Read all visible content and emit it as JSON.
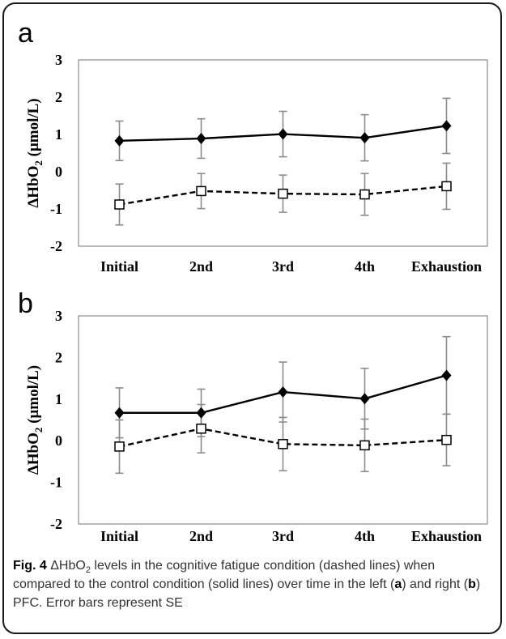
{
  "figure": {
    "caption": {
      "fig_label": "Fig. 4",
      "part1": " ΔHbO",
      "sub": "2",
      "part2": " levels in the cognitive fatigue condition (dashed lines) when compared to the control condition (solid lines) over time in the left (",
      "a": "a",
      "part3": ") and right (",
      "b": "b",
      "part4": ") PFC. Error bars represent SE"
    }
  },
  "chart_data": [
    {
      "panel": "a",
      "type": "line",
      "categories": [
        "Initial",
        "2nd",
        "3rd",
        "4th",
        "Exhaustion"
      ],
      "ylabel": "ΔHbO2 (μmol/L)",
      "ylim": [
        -2,
        3
      ],
      "yticks": [
        "-2",
        "-1",
        "0",
        "1",
        "2",
        "3"
      ],
      "series": [
        {
          "style": "solid",
          "marker": "filled-diamond",
          "values": [
            0.83,
            0.89,
            1.01,
            0.91,
            1.23
          ],
          "se": [
            0.53,
            0.53,
            0.61,
            0.62,
            0.74
          ]
        },
        {
          "style": "dashed",
          "marker": "open-square",
          "values": [
            -0.88,
            -0.52,
            -0.59,
            -0.61,
            -0.39
          ],
          "se": [
            0.55,
            0.47,
            0.5,
            0.56,
            0.62
          ]
        }
      ]
    },
    {
      "panel": "b",
      "type": "line",
      "categories": [
        "Initial",
        "2nd",
        "3rd",
        "4th",
        "Exhaustion"
      ],
      "ylabel": "ΔHbO2 (μmol/L)",
      "ylim": [
        -2,
        3
      ],
      "yticks": [
        "-2",
        "-1",
        "0",
        "1",
        "2",
        "3"
      ],
      "series": [
        {
          "style": "solid",
          "marker": "filled-diamond",
          "values": [
            0.67,
            0.67,
            1.17,
            1.01,
            1.57
          ],
          "se": [
            0.6,
            0.57,
            0.72,
            0.73,
            0.93
          ]
        },
        {
          "style": "dashed",
          "marker": "open-square",
          "values": [
            -0.14,
            0.29,
            -0.08,
            -0.11,
            0.02
          ],
          "se": [
            0.64,
            0.58,
            0.64,
            0.63,
            0.62
          ]
        }
      ]
    }
  ]
}
